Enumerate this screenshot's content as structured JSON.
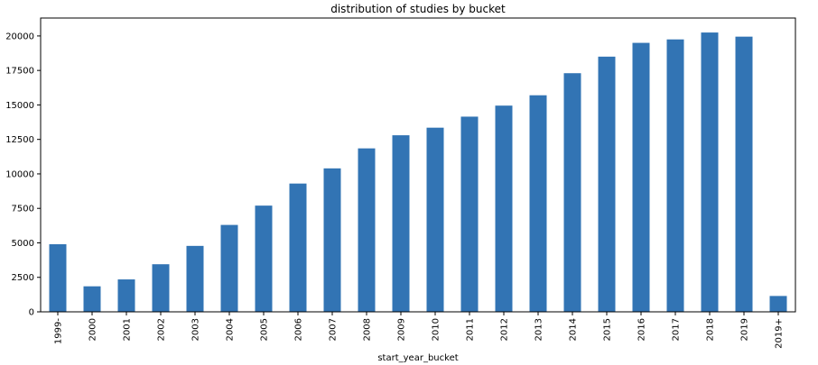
{
  "chart_data": {
    "type": "bar",
    "title": "distribution of studies by bucket",
    "xlabel": "start_year_bucket",
    "ylabel": "",
    "categories": [
      "1999-",
      "2000",
      "2001",
      "2002",
      "2003",
      "2004",
      "2005",
      "2006",
      "2007",
      "2008",
      "2009",
      "2010",
      "2011",
      "2012",
      "2013",
      "2014",
      "2015",
      "2016",
      "2017",
      "2018",
      "2019",
      "2019+"
    ],
    "values": [
      4900,
      1850,
      2350,
      3450,
      4780,
      6300,
      7700,
      9300,
      10400,
      11850,
      12800,
      13350,
      14150,
      14950,
      15700,
      17300,
      18500,
      19500,
      19750,
      20250,
      19950,
      1150
    ],
    "ylim": [
      0,
      21300
    ],
    "yticks": [
      0,
      2500,
      5000,
      7500,
      10000,
      12500,
      15000,
      17500,
      20000
    ],
    "grid": false,
    "legend": "none",
    "bar_color": "#3274b4"
  }
}
